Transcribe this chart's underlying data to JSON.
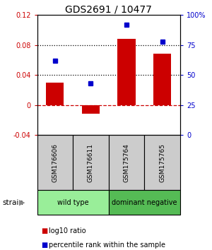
{
  "title": "GDS2691 / 10477",
  "samples": [
    "GSM176606",
    "GSM176611",
    "GSM175764",
    "GSM175765"
  ],
  "log10_ratio": [
    0.03,
    -0.012,
    0.088,
    0.068
  ],
  "percentile_rank": [
    0.62,
    0.43,
    0.92,
    0.78
  ],
  "bar_color": "#cc0000",
  "dot_color": "#0000cc",
  "ylim_left": [
    -0.04,
    0.12
  ],
  "ylim_right": [
    0.0,
    1.0
  ],
  "yticks_left": [
    -0.04,
    0.0,
    0.04,
    0.08,
    0.12
  ],
  "ytick_labels_left": [
    "-0.04",
    "0",
    "0.04",
    "0.08",
    "0.12"
  ],
  "yticks_right": [
    0.0,
    0.25,
    0.5,
    0.75,
    1.0
  ],
  "ytick_labels_right": [
    "0",
    "25",
    "50",
    "75",
    "100%"
  ],
  "hlines_dotted": [
    0.04,
    0.08
  ],
  "hline_dashed": 0.0,
  "groups": [
    {
      "label": "wild type",
      "indices": [
        0,
        1
      ],
      "color": "#99ee99"
    },
    {
      "label": "dominant negative",
      "indices": [
        2,
        3
      ],
      "color": "#55bb55"
    }
  ],
  "strain_label": "strain",
  "legend_bar_label": "log10 ratio",
  "legend_dot_label": "percentile rank within the sample",
  "sample_box_color": "#cccccc",
  "background_color": "#ffffff"
}
